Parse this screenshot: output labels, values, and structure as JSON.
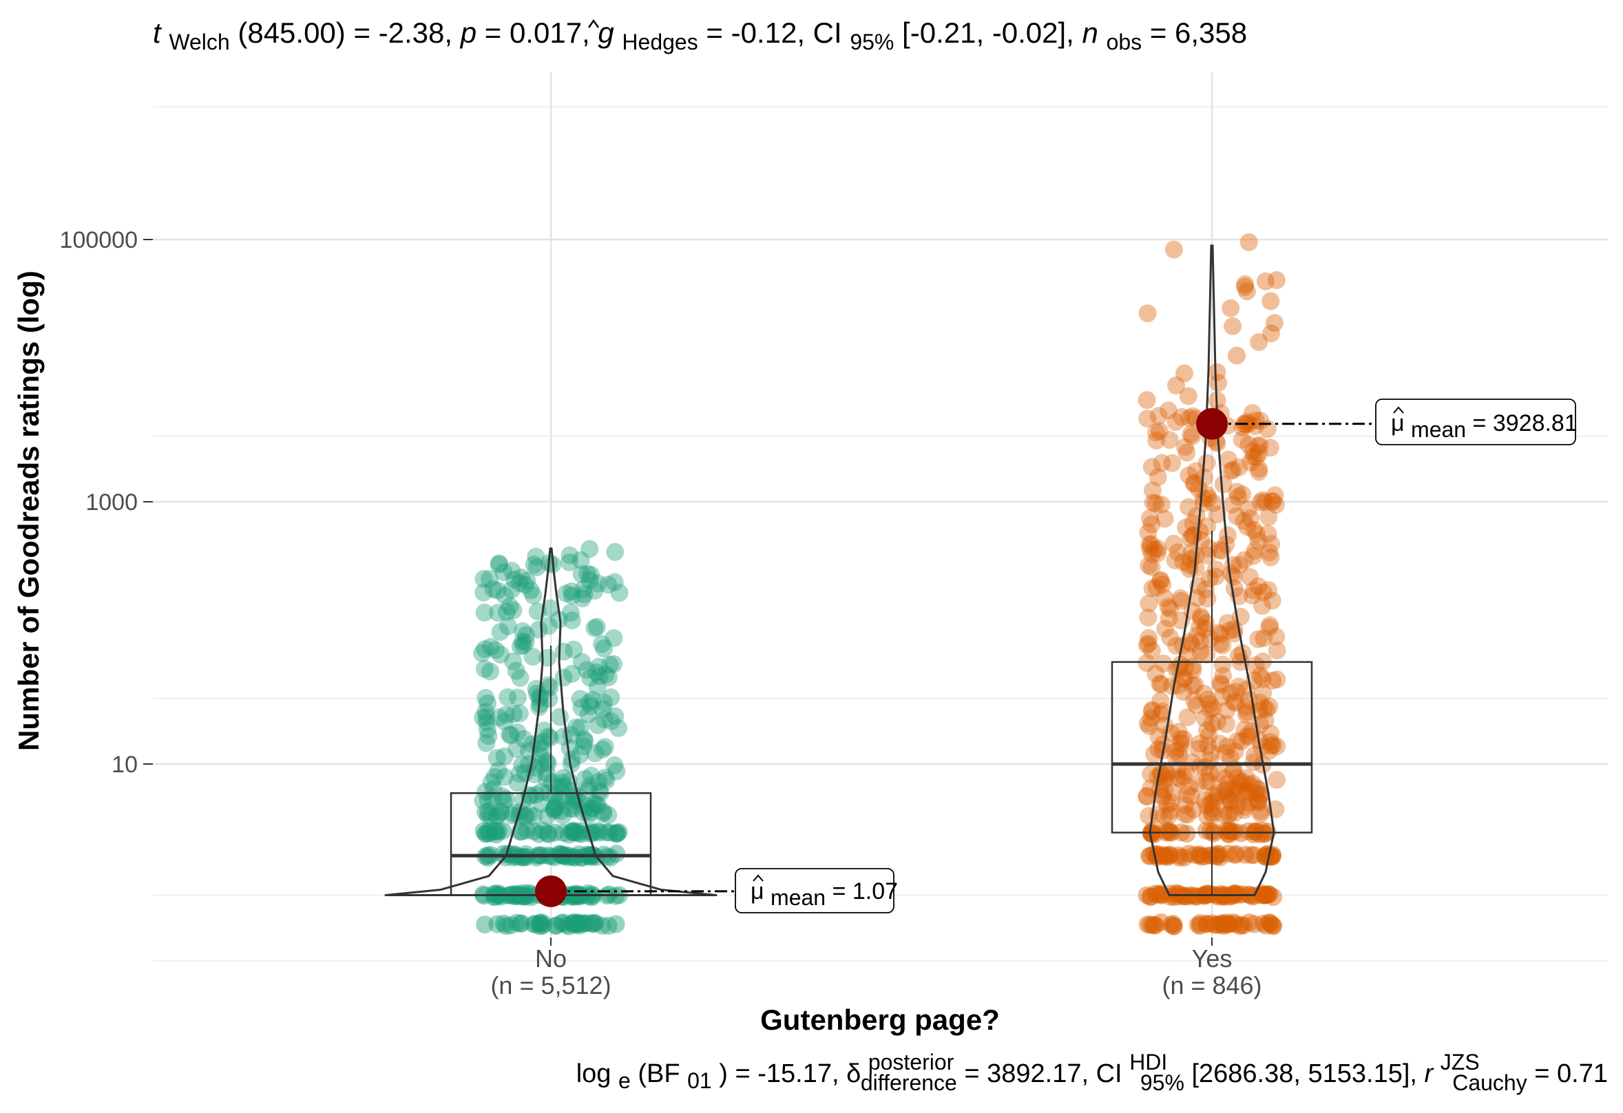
{
  "chart_data": {
    "type": "violin-box-scatter",
    "title_parts": {
      "stat": "t",
      "stat_sub": "Welch",
      "df": "(845.00) = -2.38, ",
      "p_sym": "p",
      "p_val": " = 0.017, ",
      "g_sym": "g",
      "g_sub": "Hedges",
      "g_val": " = -0.12, CI",
      "ci_sub": "95%",
      "ci_val": " [-0.21, -0.02], ",
      "n_sym": "n",
      "n_sub": "obs",
      "n_val": " = 6,358"
    },
    "caption_parts": {
      "log": "log",
      "log_sub": "e",
      "bf": "(BF",
      "bf_sub": "01",
      "bf_val": ") = -15.17, ",
      "delta": "δ",
      "delta_sup": "posterior",
      "delta_sub": "difference",
      "delta_val": " = 3892.17, CI",
      "hdi_sup": "HDI",
      "hdi_sub": "95%",
      "hdi_val": " [2686.38, 5153.15], ",
      "r": "r",
      "r_sup": "JZS",
      "r_sub": "Cauchy",
      "r_val": " = 0.71"
    },
    "xlabel": "Gutenberg page?",
    "ylabel": "Number of Goodreads ratings (log)",
    "y_scale": "log10",
    "ylim": [
      0.2,
      160000
    ],
    "y_ticks": [
      {
        "value": 10,
        "label": "10"
      },
      {
        "value": 1000,
        "label": "1000"
      },
      {
        "value": 100000,
        "label": "100000"
      }
    ],
    "grid": true,
    "groups": [
      {
        "name": "No",
        "n_label": "(n = 5,512)",
        "color": "#1b9e77",
        "box": {
          "q1": 1,
          "median": 2,
          "q3": 6,
          "whisker_low": 1,
          "whisker_high": 80
        },
        "violin_range": [
          1,
          440
        ],
        "mean_value": 1.07,
        "mean_label_sym": "μ",
        "mean_label_sub": "mean",
        "mean_label_val": " = 1.07"
      },
      {
        "name": "Yes",
        "n_label": "(n = 846)",
        "color": "#d95f02",
        "box": {
          "q1": 3,
          "median": 10,
          "q3": 60,
          "whisker_low": 1,
          "whisker_high": 600
        },
        "violin_range": [
          1,
          90000
        ],
        "mean_value": 3928.81,
        "mean_label_sym": "μ",
        "mean_label_sub": "mean",
        "mean_label_val": " = 3928.81"
      }
    ],
    "mean_point_color": "#8b0000"
  }
}
